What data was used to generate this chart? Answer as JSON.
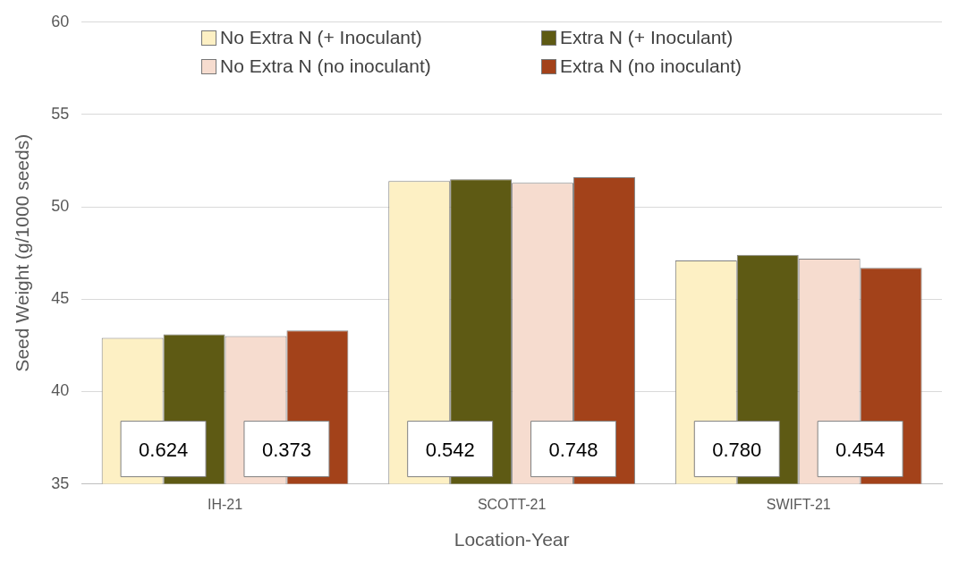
{
  "chart_data": {
    "type": "bar",
    "xlabel": "Location-Year",
    "ylabel": "Seed Weight (g/1000 seeds)",
    "categories": [
      "IH-21",
      "SCOTT-21",
      "SWIFT-21"
    ],
    "series": [
      {
        "name": "No Extra N (+ Inoculant)",
        "color": "#fdf0c4",
        "values": [
          42.9,
          51.4,
          47.1
        ]
      },
      {
        "name": "Extra N (+ Inoculant)",
        "color": "#5e5a14",
        "values": [
          43.1,
          51.5,
          47.4
        ]
      },
      {
        "name": "No Extra N (no inoculant)",
        "color": "#f6dccf",
        "values": [
          43.0,
          51.3,
          47.2
        ]
      },
      {
        "name": "Extra N (no inoculant)",
        "color": "#a3421a",
        "values": [
          43.3,
          51.6,
          46.7
        ]
      }
    ],
    "ylim": [
      35,
      60
    ],
    "yticks": [
      35,
      40,
      45,
      50,
      55,
      60
    ],
    "grid": "y",
    "legend": "top",
    "annotations": [
      "0.624",
      "0.373",
      "0.542",
      "0.748",
      "0.780",
      "0.454"
    ]
  }
}
